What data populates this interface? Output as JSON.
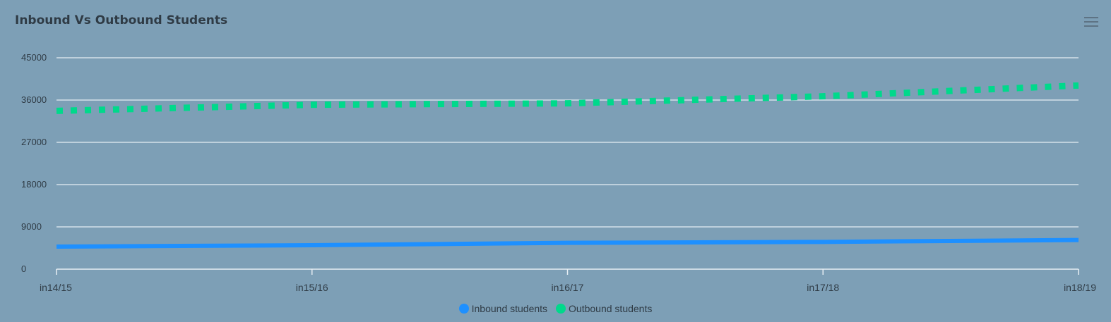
{
  "chart_data": {
    "type": "line",
    "title": "Inbound Vs Outbound Students",
    "categories": [
      "in14/15",
      "in15/16",
      "in16/17",
      "in17/18",
      "in18/19"
    ],
    "y_ticks": [
      "0",
      "9000",
      "18000",
      "27000",
      "36000",
      "45000"
    ],
    "ylim": [
      0,
      45000
    ],
    "grid": true,
    "legend_position": "bottom-center",
    "series": [
      {
        "name": "Inbound students",
        "color": "#1e90ff",
        "style": "solid",
        "values": [
          4800,
          5100,
          5600,
          5800,
          6200
        ]
      },
      {
        "name": "Outbound students",
        "color": "#00d98b",
        "style": "dotted",
        "values": [
          33700,
          35000,
          35300,
          36800,
          39100
        ]
      }
    ]
  }
}
